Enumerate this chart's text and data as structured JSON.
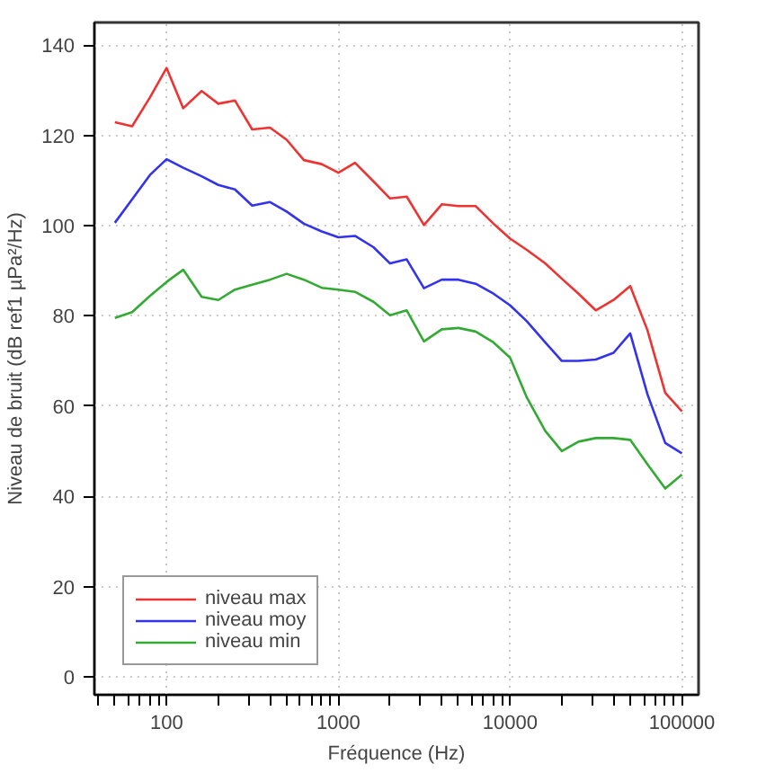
{
  "chart_data": {
    "type": "line",
    "xlabel": "Fréquence (Hz)",
    "ylabel": "Niveau de bruit (dB ref1 µPa²/Hz)",
    "x": [
      50,
      63,
      80,
      100,
      125,
      160,
      200,
      250,
      315,
      400,
      500,
      630,
      800,
      1000,
      1250,
      1600,
      2000,
      2500,
      3150,
      4000,
      5000,
      6300,
      8000,
      10000,
      12500,
      16000,
      20000,
      25000,
      31500,
      40000,
      50000,
      63000,
      80000,
      100000
    ],
    "series": [
      {
        "name": "niveau max",
        "color": "#ee3333",
        "values": [
          122.9,
          122,
          128.4,
          134.9,
          126,
          129.8,
          127,
          127.7,
          121.3,
          121.7,
          119,
          114.5,
          113.6,
          111.7,
          113.9,
          109.8,
          106,
          106.4,
          100.1,
          104.7,
          104.3,
          104.3,
          100.4,
          97.1,
          94.6,
          91.6,
          88.2,
          84.9,
          81.2,
          83.5,
          86.6,
          76.8,
          62.9,
          58.8
        ]
      },
      {
        "name": "niveau moy",
        "color": "#3333ee",
        "values": [
          100.6,
          105.8,
          111.2,
          114.7,
          112.8,
          110.9,
          109,
          108,
          104.4,
          105.2,
          103.1,
          100.4,
          98.7,
          97.4,
          97.7,
          95.2,
          91.6,
          92.5,
          86.1,
          88,
          88,
          87.1,
          84.9,
          82.3,
          78.8,
          74.1,
          70,
          70,
          70.3,
          71.8,
          76.1,
          62.6,
          51.8,
          49.5
        ]
      },
      {
        "name": "niveau min",
        "color": "#33aa33",
        "values": [
          79.5,
          80.8,
          84.4,
          87.5,
          90.2,
          84.2,
          83.5,
          85.8,
          86.9,
          88,
          89.3,
          88,
          86.2,
          85.8,
          85.3,
          83.1,
          80.1,
          81.2,
          74.3,
          77,
          77.3,
          76.5,
          74.1,
          70.7,
          61.9,
          54.5,
          50,
          52.1,
          52.9,
          52.9,
          52.5,
          47.1,
          41.7,
          44.8
        ]
      }
    ],
    "log": "x",
    "xlim": [
      38,
      125000
    ],
    "xticks": [
      {
        "value": 40,
        "label": null
      },
      {
        "value": 50,
        "label": null
      },
      {
        "value": 60,
        "label": null
      },
      {
        "value": 70,
        "label": null
      },
      {
        "value": 80,
        "label": null
      },
      {
        "value": 90,
        "label": null
      },
      100,
      {
        "value": 200,
        "label": null
      },
      {
        "value": 300,
        "label": null
      },
      {
        "value": 400,
        "label": null
      },
      {
        "value": 500,
        "label": null
      },
      {
        "value": 600,
        "label": null
      },
      {
        "value": 700,
        "label": null
      },
      {
        "value": 800,
        "label": null
      },
      {
        "value": 900,
        "label": null
      },
      1000,
      {
        "value": 2000,
        "label": null
      },
      {
        "value": 3000,
        "label": null
      },
      {
        "value": 4000,
        "label": null
      },
      {
        "value": 5000,
        "label": null
      },
      {
        "value": 6000,
        "label": null
      },
      {
        "value": 7000,
        "label": null
      },
      {
        "value": 8000,
        "label": null
      },
      {
        "value": 9000,
        "label": null
      },
      10000,
      {
        "value": 20000,
        "label": null
      },
      {
        "value": 30000,
        "label": null
      },
      {
        "value": 40000,
        "label": null
      },
      {
        "value": 50000,
        "label": null
      },
      {
        "value": 60000,
        "label": null
      },
      {
        "value": 70000,
        "label": null
      },
      {
        "value": 80000,
        "label": null
      },
      {
        "value": 90000,
        "label": null
      },
      100000
    ],
    "ylim": [
      -4,
      145
    ],
    "yticks": [
      0,
      20,
      40,
      60,
      80,
      100,
      120,
      140
    ],
    "grid": true,
    "legend": "bottom left",
    "marker": "none",
    "line_style": "solid"
  }
}
